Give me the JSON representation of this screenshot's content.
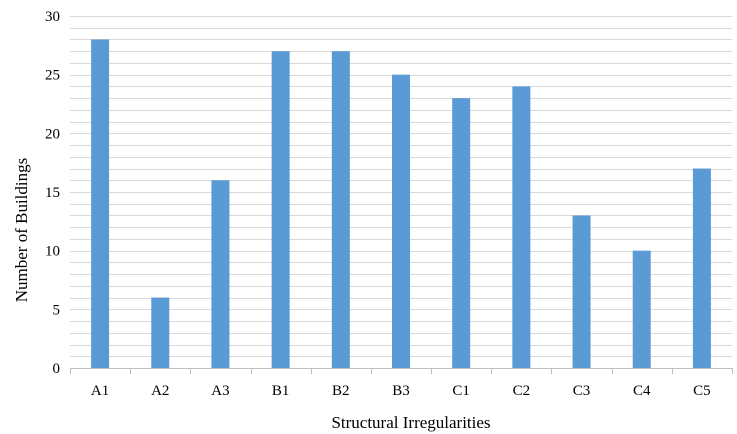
{
  "chart_data": {
    "type": "bar",
    "title": "",
    "xlabel": "Structural Irregularities",
    "ylabel": "Number of Buildings",
    "categories": [
      "A1",
      "A2",
      "A3",
      "B1",
      "B2",
      "B3",
      "C1",
      "C2",
      "C3",
      "C4",
      "C5"
    ],
    "values": [
      28,
      6,
      16,
      27,
      27,
      25,
      23,
      24,
      13,
      10,
      17
    ],
    "ylim": [
      0,
      30
    ],
    "yticks": [
      "0",
      "5",
      "10",
      "15",
      "20",
      "25",
      "30"
    ],
    "grid": true,
    "legend": "none",
    "bar_color": "#5b9bd5",
    "grid_color": "#d9d9d9",
    "axis_color": "#bfbfbf"
  }
}
